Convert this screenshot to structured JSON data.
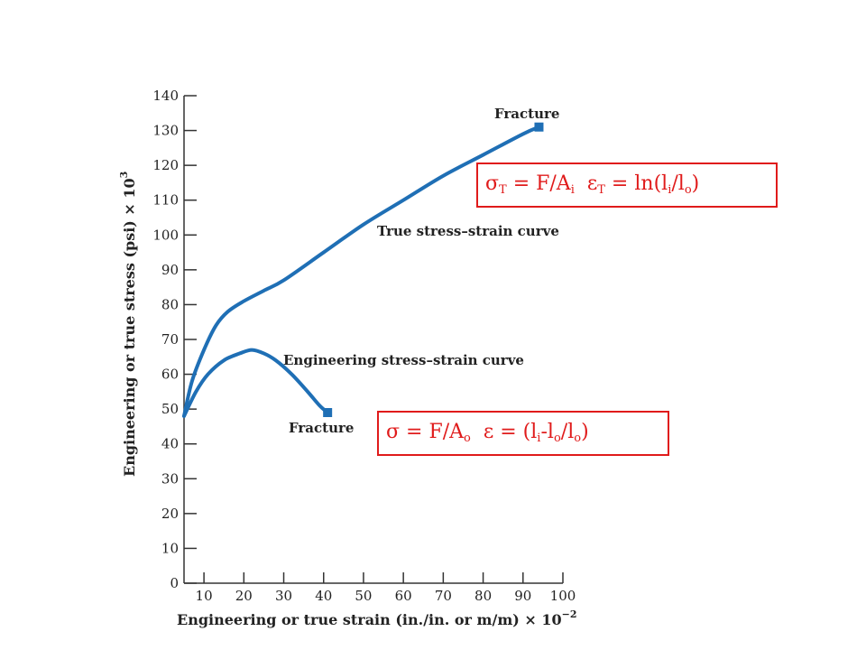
{
  "chart_data": {
    "type": "line",
    "xlabel": "Engineering or true strain (in./in. or m/m) × 10",
    "xlabel_exp": "−2",
    "ylabel": "Engineering or true stress (psi) × 10",
    "ylabel_exp": "3",
    "xlim": [
      5,
      100
    ],
    "ylim": [
      0,
      140
    ],
    "x_ticks": [
      10,
      20,
      30,
      40,
      50,
      60,
      70,
      80,
      90,
      100
    ],
    "y_ticks": [
      0,
      10,
      20,
      30,
      40,
      50,
      60,
      70,
      80,
      90,
      100,
      110,
      120,
      130,
      140
    ],
    "color": "#1f6fb5",
    "grid": false,
    "series": [
      {
        "name": "True stress–strain curve",
        "x": [
          5,
          7,
          10,
          13,
          16,
          20,
          25,
          30,
          40,
          50,
          60,
          70,
          80,
          90,
          94
        ],
        "y": [
          48,
          58,
          67,
          74,
          78,
          81,
          84,
          87,
          95,
          103,
          110,
          117,
          123,
          129,
          131
        ]
      },
      {
        "name": "Engineering stress–strain curve",
        "x": [
          5,
          8,
          11,
          15,
          19,
          22,
          25,
          28,
          32,
          36,
          39,
          41
        ],
        "y": [
          48,
          55,
          60,
          64,
          66,
          67,
          66,
          64,
          60,
          55,
          51,
          49
        ]
      }
    ],
    "annotations": [
      {
        "text": "Fracture",
        "x": 94,
        "y": 131
      },
      {
        "text": "True stress–strain curve",
        "x": 94,
        "y": 131
      },
      {
        "text": "Engineering stress–strain curve",
        "x": 41,
        "y": 49
      },
      {
        "text": "Fracture",
        "x": 41,
        "y": 49
      }
    ]
  },
  "formulas": {
    "true": {
      "sigma": "σ",
      "sigma_sub": "T",
      "eq1": " = F/A",
      "a_sub": "i",
      "epsilon": "ε",
      "epsilon_sub": "T",
      "eq2": " = ln(l",
      "l_sub": "i",
      "slash": "/l",
      "l0_sub": "o",
      "close": ")"
    },
    "engineering": {
      "sigma": "σ",
      "eq1": " = F/A",
      "a_sub": "o",
      "epsilon": "ε",
      "eq2": " = (l",
      "li_sub": "i",
      "minus": "-l",
      "lo_sub": "o",
      "slash": "/l",
      "lo2_sub": "o",
      "close": ")"
    }
  },
  "labels": {
    "fracture_true": "Fracture",
    "fracture_eng": "Fracture",
    "true_curve": "True stress–strain curve",
    "eng_curve": "Engineering stress–strain curve"
  }
}
